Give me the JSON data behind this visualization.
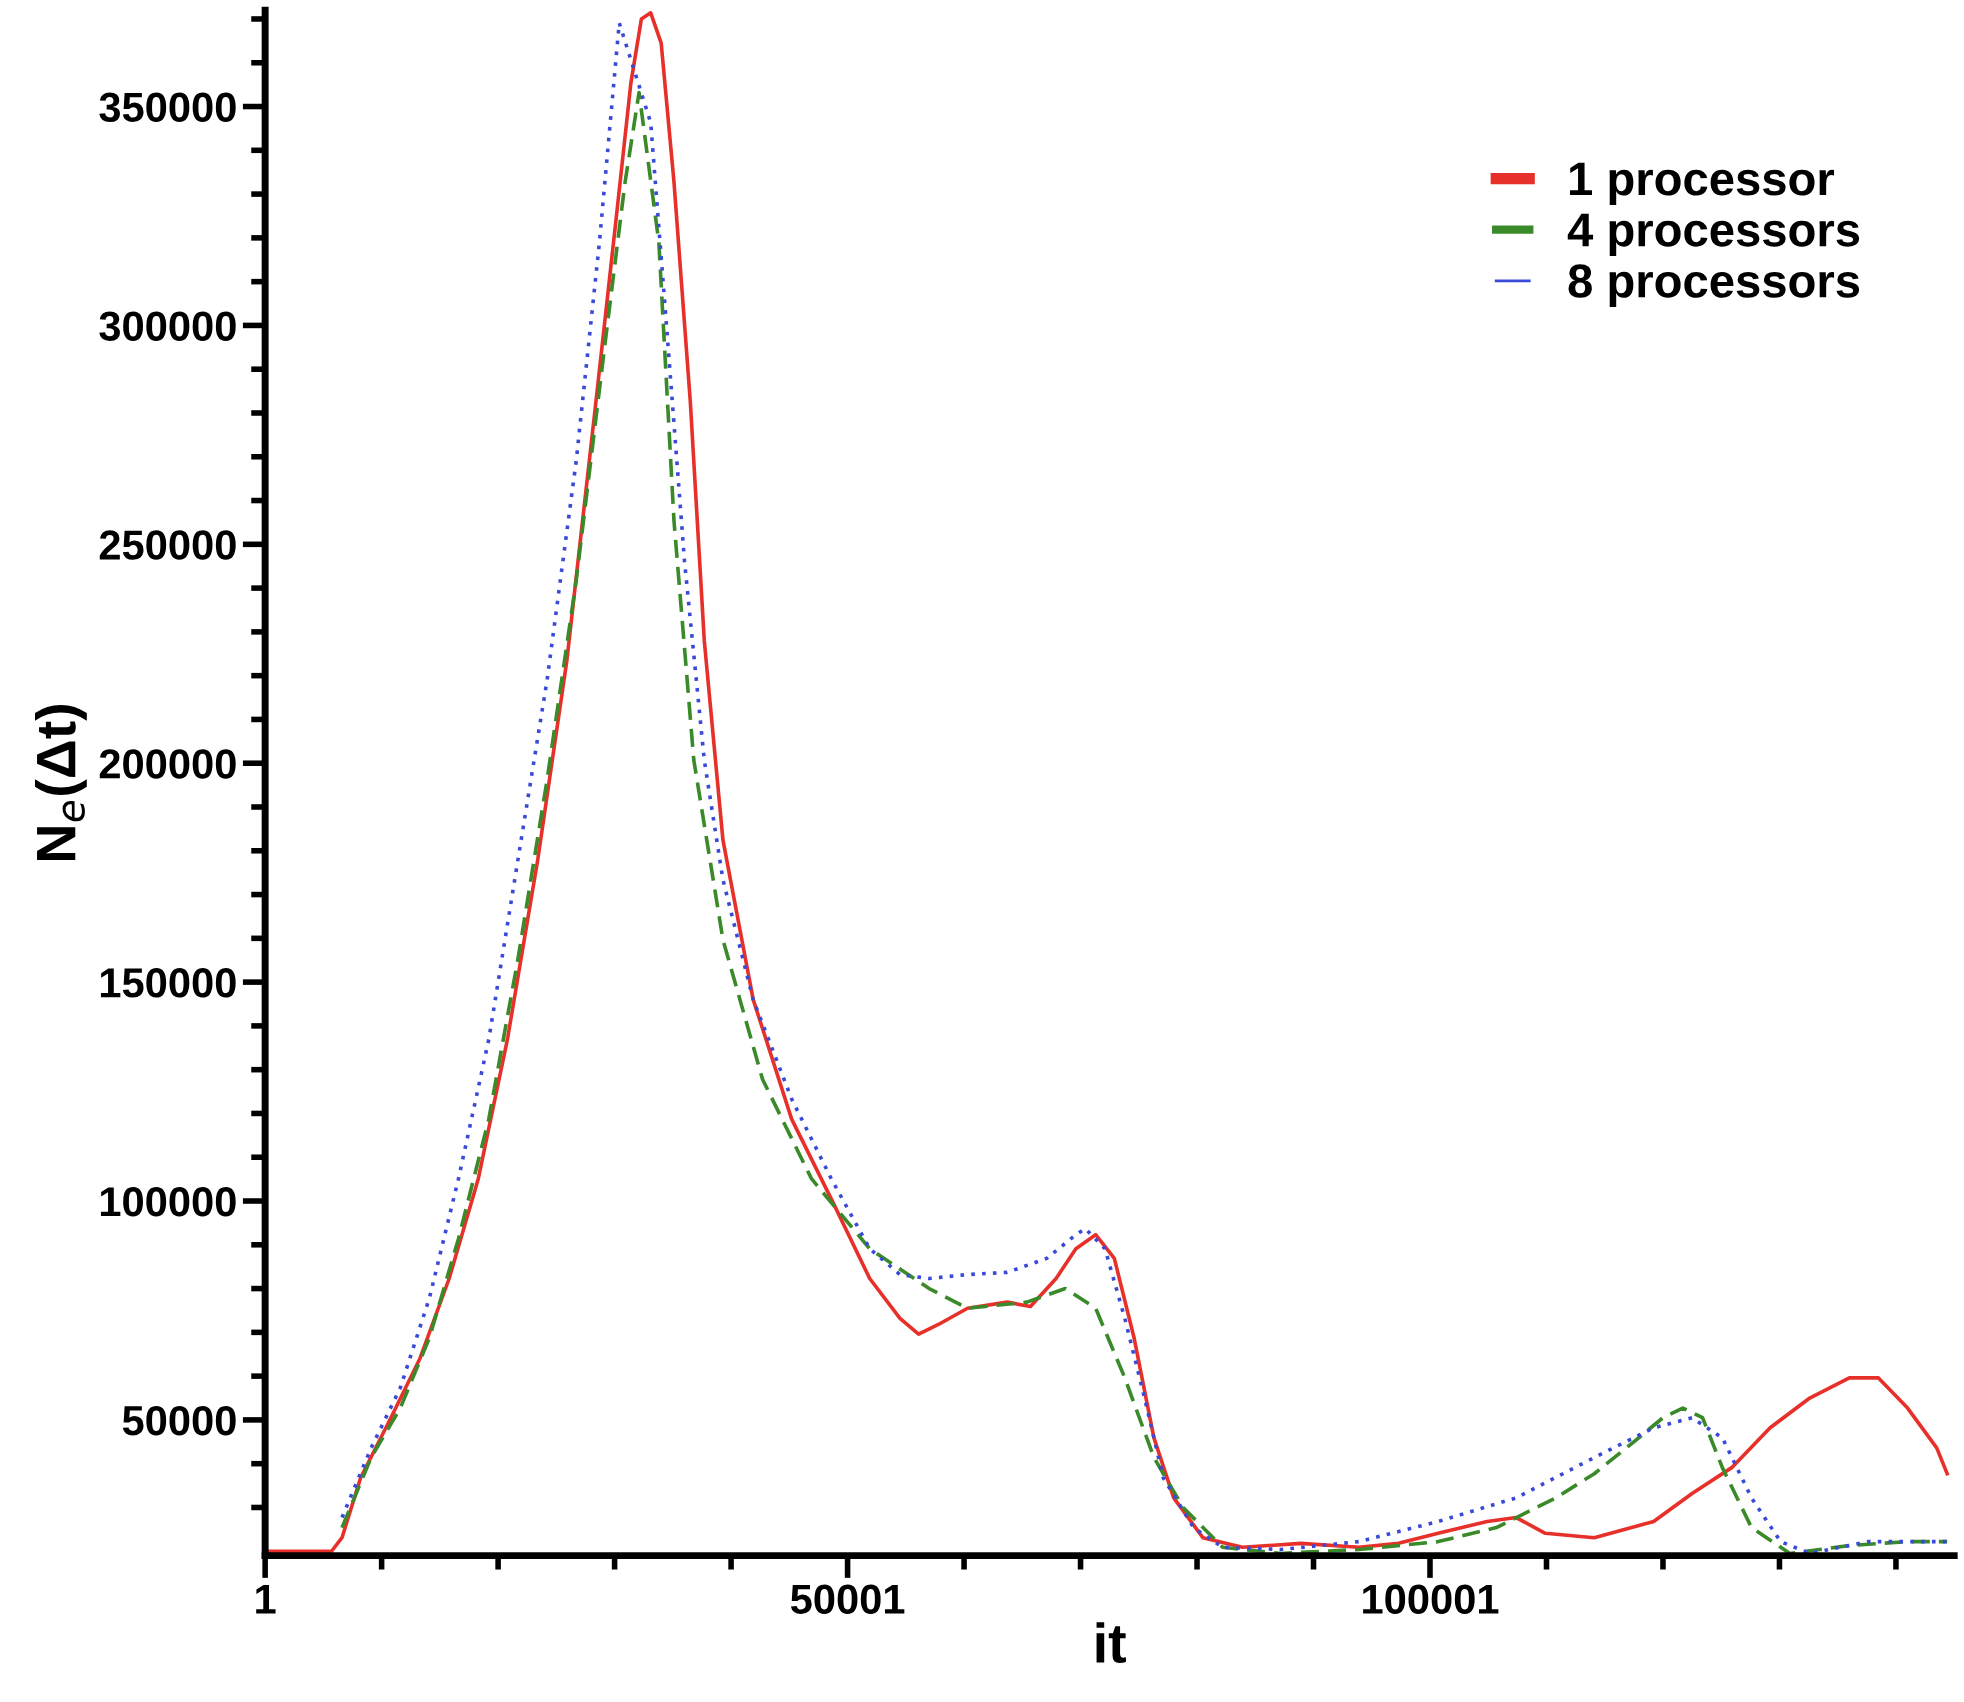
{
  "chart_data": {
    "type": "line",
    "xlabel": "it",
    "ylabel": "N$_{e}$(Δt)",
    "xlim": [
      1,
      145000
    ],
    "ylim": [
      19000,
      372000
    ],
    "xticks": [
      1,
      {
        "value": 10001,
        "label": null
      },
      {
        "value": 20001,
        "label": null
      },
      {
        "value": 30001,
        "label": null
      },
      {
        "value": 40001,
        "label": null
      },
      50001,
      {
        "value": 60001,
        "label": null
      },
      {
        "value": 70001,
        "label": null
      },
      {
        "value": 80001,
        "label": null
      },
      {
        "value": 90001,
        "label": null
      },
      100001,
      {
        "value": 110001,
        "label": null
      },
      {
        "value": 120001,
        "label": null
      },
      {
        "value": 130001,
        "label": null
      },
      {
        "value": 140001,
        "label": null
      }
    ],
    "yticks": [
      {
        "value": 30000,
        "label": null
      },
      {
        "value": 40000,
        "label": null
      },
      50000,
      {
        "value": 60000,
        "label": null
      },
      {
        "value": 70000,
        "label": null
      },
      {
        "value": 80000,
        "label": null
      },
      {
        "value": 90000,
        "label": null
      },
      100000,
      {
        "value": 110000,
        "label": null
      },
      {
        "value": 120000,
        "label": null
      },
      {
        "value": 130000,
        "label": null
      },
      {
        "value": 140000,
        "label": null
      },
      150000,
      {
        "value": 160000,
        "label": null
      },
      {
        "value": 170000,
        "label": null
      },
      {
        "value": 180000,
        "label": null
      },
      {
        "value": 190000,
        "label": null
      },
      200000,
      {
        "value": 210000,
        "label": null
      },
      {
        "value": 220000,
        "label": null
      },
      {
        "value": 230000,
        "label": null
      },
      {
        "value": 240000,
        "label": null
      },
      250000,
      {
        "value": 260000,
        "label": null
      },
      {
        "value": 270000,
        "label": null
      },
      {
        "value": 280000,
        "label": null
      },
      {
        "value": 290000,
        "label": null
      },
      300000,
      {
        "value": 310000,
        "label": null
      },
      {
        "value": 320000,
        "label": null
      },
      {
        "value": 330000,
        "label": null
      },
      {
        "value": 340000,
        "label": null
      },
      350000,
      {
        "value": 360000,
        "label": null
      },
      {
        "value": 370000,
        "label": null
      }
    ],
    "grid": false,
    "legend": "top right",
    "series": [
      {
        "name": "1 processor",
        "color": "#e8302a",
        "line_style": "solid",
        "x": [
          1,
          5700,
          6600,
          8200,
          10800,
          13300,
          15800,
          18300,
          20800,
          23400,
          25900,
          28400,
          30100,
          31400,
          32300,
          33100,
          34000,
          35100,
          36500,
          37700,
          39300,
          41900,
          45200,
          48600,
          51900,
          54500,
          56100,
          57800,
          60300,
          63700,
          65700,
          67900,
          69600,
          71300,
          72900,
          74600,
          76300,
          78000,
          80500,
          83900,
          88900,
          93900,
          97300,
          100700,
          104900,
          107400,
          109900,
          114100,
          119200,
          122500,
          125900,
          129200,
          132600,
          136000,
          138500,
          141000,
          143500,
          144400
        ],
        "values": [
          20000,
          20000,
          23100,
          36800,
          50500,
          64100,
          82300,
          105100,
          136900,
          177900,
          223400,
          282600,
          323600,
          355400,
          370000,
          371400,
          364500,
          332700,
          282600,
          228000,
          182500,
          146000,
          118700,
          100500,
          82300,
          73200,
          69600,
          71800,
          75500,
          76900,
          75900,
          82300,
          89100,
          92300,
          86900,
          68700,
          45900,
          32200,
          23100,
          20900,
          21800,
          20900,
          21800,
          24100,
          26800,
          27700,
          24100,
          23100,
          26800,
          33200,
          39100,
          48200,
          55000,
          59600,
          59600,
          52700,
          43600,
          37700
        ]
      },
      {
        "name": "4 processors",
        "color": "#3a8a2a",
        "line_style": "dashed",
        "x": [
          6600,
          9100,
          11600,
          14100,
          16600,
          19200,
          21700,
          24200,
          26700,
          29200,
          30900,
          32100,
          33800,
          35100,
          36800,
          39300,
          42700,
          46900,
          51900,
          57000,
          60300,
          65400,
          68700,
          71300,
          73800,
          76300,
          78800,
          82200,
          87200,
          93900,
          100700,
          105700,
          110800,
          114100,
          117500,
          120000,
          121700,
          123400,
          125100,
          127600,
          130900,
          136000,
          141000,
          144400
        ],
        "values": [
          25400,
          41400,
          52700,
          68700,
          91400,
          118700,
          155200,
          196100,
          241600,
          296300,
          332700,
          353200,
          319000,
          255300,
          200700,
          159700,
          127800,
          105100,
          89100,
          80000,
          75500,
          76900,
          80000,
          75500,
          59600,
          41400,
          30000,
          20900,
          19500,
          20400,
          22200,
          25400,
          32200,
          37700,
          45000,
          50500,
          52700,
          50500,
          39100,
          25400,
          19500,
          21300,
          22200,
          22200
        ]
      },
      {
        "name": "8 processors",
        "color": "#3a4ad8",
        "line_style": "dotted",
        "x": [
          6600,
          9100,
          11600,
          14100,
          16600,
          19200,
          21700,
          24200,
          26700,
          28700,
          30400,
          33100,
          34300,
          36000,
          37700,
          39300,
          41900,
          45200,
          48600,
          51900,
          54500,
          57000,
          60300,
          63700,
          67100,
          69600,
          70400,
          72100,
          73800,
          75500,
          77100,
          79700,
          82200,
          87200,
          93900,
          100700,
          107400,
          114100,
          119200,
          122500,
          125100,
          127600,
          130100,
          132600,
          137600,
          144400
        ],
        "values": [
          27700,
          43600,
          57300,
          77800,
          105100,
          136900,
          177900,
          218900,
          268900,
          319000,
          369100,
          346300,
          305400,
          246200,
          200700,
          173400,
          146000,
          123300,
          105100,
          89100,
          83200,
          82300,
          83200,
          83700,
          86900,
          92300,
          93700,
          89100,
          73200,
          55000,
          36800,
          25400,
          20900,
          20400,
          22200,
          26800,
          32200,
          41400,
          48200,
          50500,
          45900,
          32200,
          22200,
          19500,
          22200,
          22200
        ]
      }
    ]
  }
}
